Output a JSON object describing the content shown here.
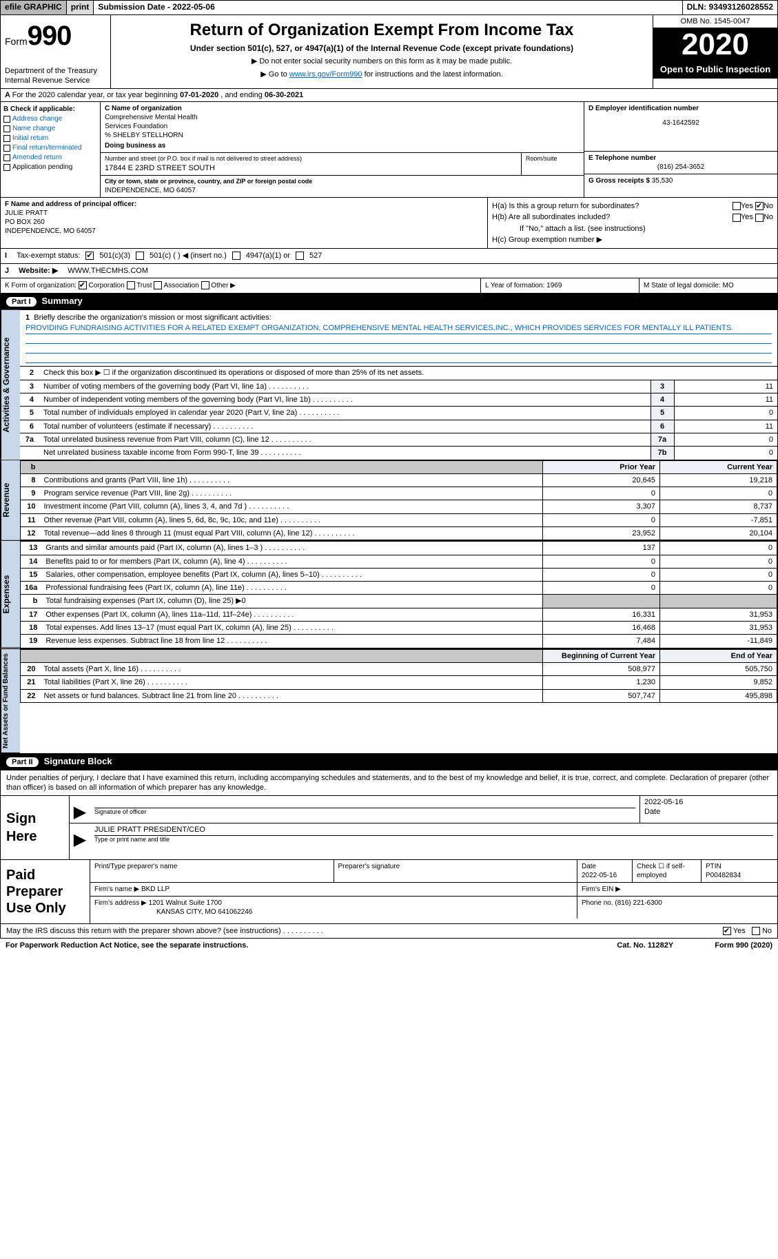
{
  "topbar": {
    "efile": "efile GRAPHIC",
    "print": "print",
    "submission": "Submission Date - 2022-05-06",
    "dln": "DLN: 93493126028552"
  },
  "header": {
    "form_word": "Form",
    "form_num": "990",
    "dept": "Department of the Treasury\nInternal Revenue Service",
    "title": "Return of Organization Exempt From Income Tax",
    "subtitle": "Under section 501(c), 527, or 4947(a)(1) of the Internal Revenue Code (except private foundations)",
    "line1": "▶ Do not enter social security numbers on this form as it may be made public.",
    "line2_pre": "▶ Go to ",
    "line2_link": "www.irs.gov/Form990",
    "line2_post": " for instructions and the latest information.",
    "omb": "OMB No. 1545-0047",
    "year": "2020",
    "open": "Open to Public Inspection"
  },
  "rowA": {
    "pre": "For the 2020 calendar year, or tax year beginning ",
    "begin": "07-01-2020",
    "mid": " , and ending ",
    "end": "06-30-2021"
  },
  "B": {
    "hdr": "B Check if applicable:",
    "opts": [
      "Address change",
      "Name change",
      "Initial return",
      "Final return/terminated",
      "Amended return",
      "Application pending"
    ]
  },
  "C": {
    "name_lbl": "C Name of organization",
    "name1": "Comprehensive Mental Health",
    "name2": "Services Foundation",
    "care": "% SHELBY STELLHORN",
    "dba_lbl": "Doing business as",
    "addr_lbl": "Number and street (or P.O. box if mail is not delivered to street address)",
    "room_lbl": "Room/suite",
    "addr": "17844 E 23RD STREET SOUTH",
    "city_lbl": "City or town, state or province, country, and ZIP or foreign postal code",
    "city": "INDEPENDENCE, MO  64057"
  },
  "D": {
    "ein_lbl": "D Employer identification number",
    "ein": "43-1642592",
    "tel_lbl": "E Telephone number",
    "tel": "(816) 254-3652",
    "gross_lbl": "G Gross receipts $",
    "gross": "35,530"
  },
  "F": {
    "lbl": "F Name and address of principal officer:",
    "name": "JULIE PRATT",
    "addr1": "PO BOX 260",
    "addr2": "INDEPENDENCE, MO  64057"
  },
  "H": {
    "a": "H(a)  Is this a group return for subordinates?",
    "b": "H(b)  Are all subordinates included?",
    "b_note": "If \"No,\" attach a list. (see instructions)",
    "c": "H(c)  Group exemption number ▶",
    "yes": "Yes",
    "no": "No"
  },
  "I": {
    "lbl": "Tax-exempt status:",
    "o1": "501(c)(3)",
    "o2": "501(c) (  ) ◀ (insert no.)",
    "o3": "4947(a)(1) or",
    "o4": "527"
  },
  "J": {
    "lbl": "Website: ▶",
    "val": "WWW.THECMHS.COM"
  },
  "K": {
    "lbl": "K Form of organization:",
    "opts": [
      "Corporation",
      "Trust",
      "Association",
      "Other ▶"
    ]
  },
  "L": {
    "lbl": "L Year of formation:",
    "val": "1969"
  },
  "M": {
    "lbl": "M State of legal domicile:",
    "val": "MO"
  },
  "part1": {
    "tag": "Part I",
    "title": "Summary"
  },
  "summary": {
    "q1_lbl": "Briefly describe the organization's mission or most significant activities:",
    "q1_val": "PROVIDING FUNDRAISING ACTIVITIES FOR A RELATED EXEMPT ORGANIZATION, COMPREHENSIVE MENTAL HEALTH SERVICES,INC., WHICH PROVIDES SERVICES FOR MENTALLY ILL PATIENTS.",
    "q2": "Check this box ▶ ☐  if the organization discontinued its operations or disposed of more than 25% of its net assets.",
    "rows": [
      {
        "n": "3",
        "t": "Number of voting members of the governing body (Part VI, line 1a)",
        "b": "3",
        "v": "11"
      },
      {
        "n": "4",
        "t": "Number of independent voting members of the governing body (Part VI, line 1b)",
        "b": "4",
        "v": "11"
      },
      {
        "n": "5",
        "t": "Total number of individuals employed in calendar year 2020 (Part V, line 2a)",
        "b": "5",
        "v": "0"
      },
      {
        "n": "6",
        "t": "Total number of volunteers (estimate if necessary)",
        "b": "6",
        "v": "11"
      },
      {
        "n": "7a",
        "t": "Total unrelated business revenue from Part VIII, column (C), line 12",
        "b": "7a",
        "v": "0"
      },
      {
        "n": "",
        "t": "Net unrelated business taxable income from Form 990-T, line 39",
        "b": "7b",
        "v": "0"
      }
    ]
  },
  "tabs": {
    "gov": "Activities & Governance",
    "rev": "Revenue",
    "exp": "Expenses",
    "net": "Net Assets or Fund Balances"
  },
  "fin": {
    "hdr_b": "b",
    "hdr_prior": "Prior Year",
    "hdr_curr": "Current Year",
    "hdr_begin": "Beginning of Current Year",
    "hdr_end": "End of Year",
    "rev": [
      {
        "n": "8",
        "t": "Contributions and grants (Part VIII, line 1h)",
        "p": "20,645",
        "c": "19,218"
      },
      {
        "n": "9",
        "t": "Program service revenue (Part VIII, line 2g)",
        "p": "0",
        "c": "0"
      },
      {
        "n": "10",
        "t": "Investment income (Part VIII, column (A), lines 3, 4, and 7d )",
        "p": "3,307",
        "c": "8,737"
      },
      {
        "n": "11",
        "t": "Other revenue (Part VIII, column (A), lines 5, 6d, 8c, 9c, 10c, and 11e)",
        "p": "0",
        "c": "-7,851"
      },
      {
        "n": "12",
        "t": "Total revenue—add lines 8 through 11 (must equal Part VIII, column (A), line 12)",
        "p": "23,952",
        "c": "20,104"
      }
    ],
    "exp": [
      {
        "n": "13",
        "t": "Grants and similar amounts paid (Part IX, column (A), lines 1–3 )",
        "p": "137",
        "c": "0"
      },
      {
        "n": "14",
        "t": "Benefits paid to or for members (Part IX, column (A), line 4)",
        "p": "0",
        "c": "0"
      },
      {
        "n": "15",
        "t": "Salaries, other compensation, employee benefits (Part IX, column (A), lines 5–10)",
        "p": "0",
        "c": "0"
      },
      {
        "n": "16a",
        "t": "Professional fundraising fees (Part IX, column (A), line 11e)",
        "p": "0",
        "c": "0"
      },
      {
        "n": "b",
        "t": "Total fundraising expenses (Part IX, column (D), line 25) ▶0",
        "shade": true
      },
      {
        "n": "17",
        "t": "Other expenses (Part IX, column (A), lines 11a–11d, 11f–24e)",
        "p": "16,331",
        "c": "31,953"
      },
      {
        "n": "18",
        "t": "Total expenses. Add lines 13–17 (must equal Part IX, column (A), line 25)",
        "p": "16,468",
        "c": "31,953"
      },
      {
        "n": "19",
        "t": "Revenue less expenses. Subtract line 18 from line 12",
        "p": "7,484",
        "c": "-11,849"
      }
    ],
    "net": [
      {
        "n": "20",
        "t": "Total assets (Part X, line 16)",
        "p": "508,977",
        "c": "505,750"
      },
      {
        "n": "21",
        "t": "Total liabilities (Part X, line 26)",
        "p": "1,230",
        "c": "9,852"
      },
      {
        "n": "22",
        "t": "Net assets or fund balances. Subtract line 21 from line 20",
        "p": "507,747",
        "c": "495,898"
      }
    ]
  },
  "part2": {
    "tag": "Part II",
    "title": "Signature Block"
  },
  "sig": {
    "decl": "Under penalties of perjury, I declare that I have examined this return, including accompanying schedules and statements, and to the best of my knowledge and belief, it is true, correct, and complete. Declaration of preparer (other than officer) is based on all information of which preparer has any knowledge.",
    "sign_here": "Sign Here",
    "sig_officer": "Signature of officer",
    "date": "Date",
    "date_val": "2022-05-16",
    "name_title": "JULIE PRATT  PRESIDENT/CEO",
    "type_name": "Type or print name and title"
  },
  "paid": {
    "title": "Paid Preparer Use Only",
    "h1": "Print/Type preparer's name",
    "h2": "Preparer's signature",
    "h3": "Date",
    "h3v": "2022-05-16",
    "h4": "Check ☐ if self-employed",
    "h5": "PTIN",
    "h5v": "P00482834",
    "firm_lbl": "Firm's name    ▶",
    "firm": "BKD LLP",
    "ein_lbl": "Firm's EIN ▶",
    "addr_lbl": "Firm's address ▶",
    "addr": "1201 Walnut Suite 1700",
    "addr2": "KANSAS CITY, MO  641062246",
    "phone_lbl": "Phone no.",
    "phone": "(816) 221-6300"
  },
  "footer": {
    "discuss": "May the IRS discuss this return with the preparer shown above? (see instructions)",
    "yes": "Yes",
    "no": "No",
    "paperwork": "For Paperwork Reduction Act Notice, see the separate instructions.",
    "cat": "Cat. No. 11282Y",
    "formv": "Form 990 (2020)"
  }
}
